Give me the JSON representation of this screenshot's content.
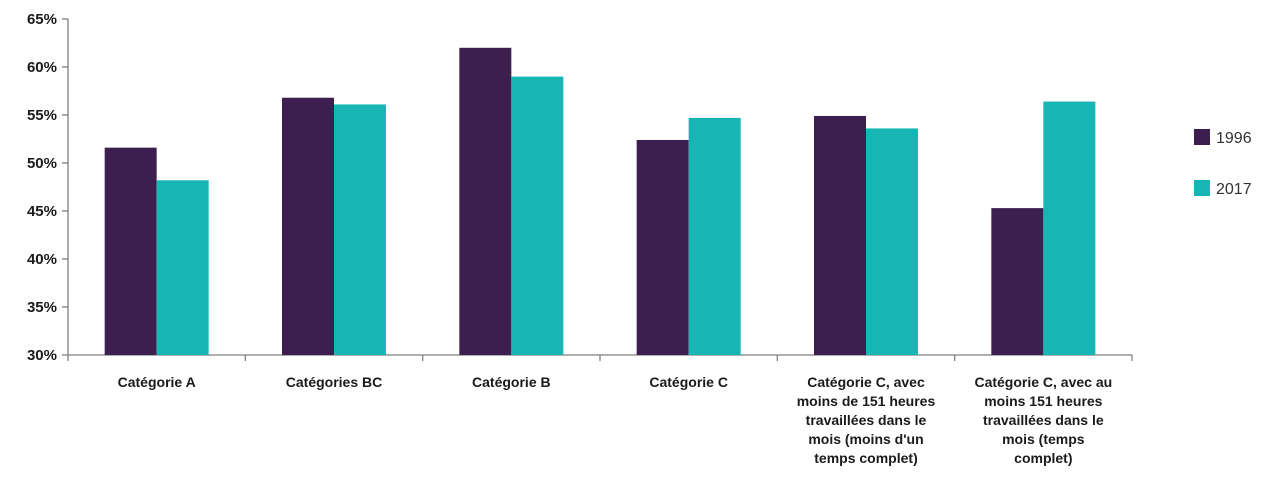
{
  "chart_data": {
    "type": "bar",
    "categories": [
      [
        "Catégorie A"
      ],
      [
        "Catégories BC"
      ],
      [
        "Catégorie B"
      ],
      [
        "Catégorie C"
      ],
      [
        "Catégorie C, avec",
        "moins de 151 heures",
        "travaillées dans le",
        "mois (moins d'un",
        "temps complet)"
      ],
      [
        "Catégorie C, avec au",
        "moins 151 heures",
        "travaillées dans le",
        "mois (temps",
        "complet)"
      ]
    ],
    "series": [
      {
        "name": "1996",
        "color": "#3c1f4f",
        "values": [
          51.6,
          56.8,
          62.0,
          52.4,
          54.9,
          45.3
        ]
      },
      {
        "name": "2017",
        "color": "#17b6b4",
        "values": [
          48.2,
          56.1,
          59.0,
          54.7,
          53.6,
          56.4
        ]
      }
    ],
    "ylim": [
      30,
      65
    ],
    "yticks": [
      30,
      35,
      40,
      45,
      50,
      55,
      60,
      65
    ],
    "ytick_labels": [
      "30%",
      "35%",
      "40%",
      "45%",
      "50%",
      "55%",
      "60%",
      "65%"
    ],
    "grid": false,
    "legend_position": "right",
    "title": "",
    "xlabel": "",
    "ylabel": ""
  }
}
